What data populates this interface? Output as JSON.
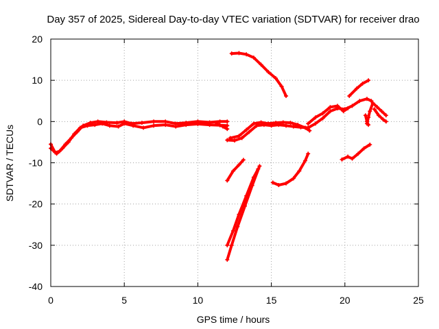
{
  "chart_data": {
    "type": "scatter",
    "title": "Day 357 of 2025, Sidereal Day-to-day VTEC variation (SDTVAR) for receiver drao",
    "xlabel": "GPS time / hours",
    "ylabel": "SDTVAR / TECUs",
    "xlim": [
      0,
      25
    ],
    "ylim": [
      -40,
      20
    ],
    "xticks": [
      "0",
      "5",
      "10",
      "15",
      "20",
      "25"
    ],
    "yticks": [
      "20",
      "10",
      "0",
      "-10",
      "-20",
      "-30",
      "-40"
    ],
    "xtick_values": [
      0,
      5,
      10,
      15,
      20,
      25
    ],
    "ytick_values": [
      20,
      10,
      0,
      -10,
      -20,
      -30,
      -40
    ],
    "grid": true,
    "series_color": "#ff0000",
    "series": [
      {
        "points": [
          [
            0.0,
            -5.5
          ],
          [
            0.3,
            -7.5
          ],
          [
            0.6,
            -7.2
          ],
          [
            1.0,
            -5.5
          ],
          [
            1.4,
            -4.0
          ],
          [
            1.8,
            -2.5
          ],
          [
            2.2,
            -1.0
          ],
          [
            2.7,
            -0.3
          ],
          [
            3.2,
            0.0
          ],
          [
            3.8,
            -0.2
          ],
          [
            4.5,
            -0.3
          ],
          [
            5.0,
            0.0
          ],
          [
            5.5,
            -0.5
          ],
          [
            6.2,
            -0.3
          ],
          [
            7.0,
            0.0
          ],
          [
            7.8,
            0.0
          ],
          [
            8.5,
            -0.5
          ],
          [
            9.2,
            -0.3
          ],
          [
            10.0,
            0.0
          ],
          [
            10.8,
            -0.2
          ],
          [
            11.5,
            0.0
          ],
          [
            12.0,
            0.0
          ]
        ]
      },
      {
        "points": [
          [
            0.0,
            -6.5
          ],
          [
            0.4,
            -7.8
          ],
          [
            0.8,
            -6.5
          ],
          [
            1.2,
            -5.0
          ],
          [
            1.6,
            -3.0
          ],
          [
            2.0,
            -1.5
          ],
          [
            2.5,
            -1.0
          ],
          [
            3.0,
            -0.8
          ],
          [
            3.5,
            -0.5
          ],
          [
            4.0,
            -1.0
          ],
          [
            4.6,
            -1.2
          ],
          [
            5.0,
            -0.5
          ],
          [
            5.6,
            -1.0
          ],
          [
            6.3,
            -1.5
          ],
          [
            7.0,
            -1.0
          ],
          [
            7.8,
            -0.8
          ],
          [
            8.5,
            -1.2
          ],
          [
            9.2,
            -0.8
          ],
          [
            10.0,
            -0.6
          ],
          [
            10.8,
            -0.8
          ],
          [
            11.5,
            -0.9
          ],
          [
            12.0,
            -1.0
          ]
        ]
      },
      {
        "points": [
          [
            11.3,
            -0.5
          ],
          [
            11.7,
            -1.2
          ],
          [
            12.0,
            -1.8
          ]
        ]
      },
      {
        "points": [
          [
            12.3,
            16.5
          ],
          [
            12.8,
            16.6
          ],
          [
            13.3,
            16.3
          ],
          [
            13.8,
            15.5
          ],
          [
            14.3,
            13.8
          ],
          [
            14.8,
            12.0
          ],
          [
            15.3,
            10.5
          ],
          [
            15.7,
            8.5
          ],
          [
            16.0,
            6.2
          ]
        ]
      },
      {
        "points": [
          [
            12.0,
            -4.5
          ],
          [
            12.5,
            -4.6
          ],
          [
            13.0,
            -4.0
          ],
          [
            13.5,
            -2.5
          ],
          [
            14.0,
            -1.0
          ],
          [
            14.5,
            -0.8
          ],
          [
            15.0,
            -1.0
          ],
          [
            15.5,
            -0.8
          ],
          [
            16.0,
            -1.0
          ],
          [
            16.5,
            -1.2
          ],
          [
            17.0,
            -1.4
          ],
          [
            17.5,
            -1.5
          ],
          [
            18.0,
            -0.5
          ],
          [
            18.5,
            0.8
          ],
          [
            19.0,
            2.5
          ],
          [
            19.5,
            3.2
          ],
          [
            20.0,
            3.0
          ],
          [
            20.5,
            3.8
          ],
          [
            21.0,
            5.0
          ],
          [
            21.5,
            5.5
          ],
          [
            21.8,
            5.0
          ]
        ]
      },
      {
        "points": [
          [
            12.2,
            -4.0
          ],
          [
            12.8,
            -3.5
          ],
          [
            13.3,
            -2.0
          ],
          [
            13.8,
            -0.5
          ],
          [
            14.3,
            -0.2
          ],
          [
            14.8,
            -0.5
          ],
          [
            15.3,
            -0.3
          ],
          [
            15.8,
            -0.2
          ],
          [
            16.3,
            -0.3
          ],
          [
            16.8,
            -0.8
          ],
          [
            17.3,
            -1.5
          ],
          [
            17.6,
            -2.2
          ]
        ]
      },
      {
        "points": [
          [
            12.0,
            -14.3
          ],
          [
            12.4,
            -12.0
          ],
          [
            12.8,
            -10.5
          ],
          [
            13.1,
            -9.3
          ]
        ]
      },
      {
        "points": [
          [
            12.0,
            -33.5
          ],
          [
            12.3,
            -30.0
          ],
          [
            12.7,
            -25.5
          ],
          [
            13.2,
            -20.5
          ],
          [
            13.7,
            -15.5
          ],
          [
            14.2,
            -10.8
          ]
        ]
      },
      {
        "points": [
          [
            12.0,
            -30.0
          ],
          [
            12.4,
            -26.5
          ],
          [
            12.8,
            -22.5
          ],
          [
            13.3,
            -18.0
          ],
          [
            13.8,
            -13.5
          ],
          [
            14.1,
            -11.5
          ]
        ]
      },
      {
        "points": [
          [
            15.1,
            -14.8
          ],
          [
            15.5,
            -15.4
          ],
          [
            16.0,
            -15.0
          ],
          [
            16.5,
            -13.8
          ],
          [
            16.9,
            -12.0
          ],
          [
            17.3,
            -9.5
          ],
          [
            17.5,
            -7.8
          ]
        ]
      },
      {
        "points": [
          [
            17.5,
            -0.5
          ],
          [
            18.0,
            1.0
          ],
          [
            18.5,
            2.0
          ],
          [
            19.0,
            3.5
          ],
          [
            19.5,
            3.8
          ],
          [
            19.9,
            2.5
          ],
          [
            20.2,
            3.2
          ]
        ]
      },
      {
        "points": [
          [
            19.8,
            -9.2
          ],
          [
            20.2,
            -8.5
          ],
          [
            20.5,
            -9.0
          ],
          [
            20.9,
            -7.8
          ],
          [
            21.3,
            -6.5
          ],
          [
            21.7,
            -5.6
          ]
        ]
      },
      {
        "points": [
          [
            20.3,
            6.2
          ],
          [
            20.8,
            8.0
          ],
          [
            21.2,
            9.2
          ],
          [
            21.6,
            10.0
          ]
        ]
      },
      {
        "points": [
          [
            21.5,
            -0.5
          ],
          [
            21.6,
            1.0
          ],
          [
            21.7,
            2.5
          ],
          [
            21.9,
            4.5
          ],
          [
            22.2,
            3.5
          ],
          [
            22.5,
            2.5
          ],
          [
            22.8,
            1.5
          ]
        ]
      },
      {
        "points": [
          [
            21.4,
            1.5
          ],
          [
            21.5,
            0.0
          ],
          [
            21.6,
            -0.8
          ]
        ]
      },
      {
        "points": [
          [
            22.0,
            3.0
          ],
          [
            22.3,
            1.5
          ],
          [
            22.6,
            0.5
          ],
          [
            22.8,
            0.0
          ]
        ]
      }
    ]
  }
}
